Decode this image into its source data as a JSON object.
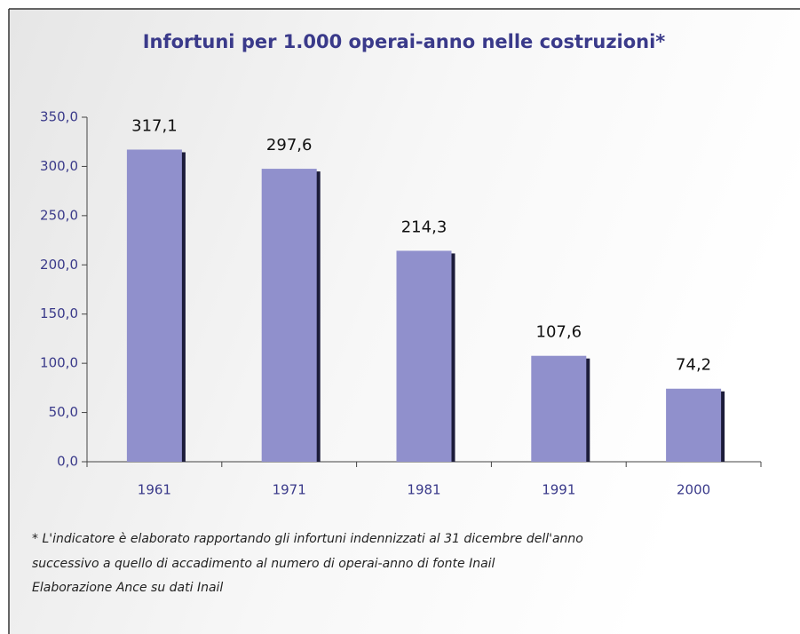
{
  "chart_data": {
    "type": "bar",
    "title": "Infortuni per 1.000 operai-anno nelle costruzioni*",
    "categories": [
      "1961",
      "1971",
      "1981",
      "1991",
      "2000"
    ],
    "values": [
      317.1,
      297.6,
      214.3,
      107.6,
      74.2
    ],
    "value_labels": [
      "317,1",
      "297,6",
      "214,3",
      "107,6",
      "74,2"
    ],
    "color": "#9090cc",
    "ylim": [
      0,
      350
    ],
    "yticks": [
      {
        "value": 0,
        "label": "0,0"
      },
      {
        "value": 50,
        "label": "50,0"
      },
      {
        "value": 100,
        "label": "100,0"
      },
      {
        "value": 150,
        "label": "150,0"
      },
      {
        "value": 200,
        "label": "200,0"
      },
      {
        "value": 250,
        "label": "250,0"
      },
      {
        "value": 300,
        "label": "300,0"
      },
      {
        "value": 350,
        "label": "350,0"
      }
    ],
    "notes": [
      "* L'indicatore è elaborato rapportando gli infortuni indennizzati al 31 dicembre dell'anno",
      "successivo a quello di accadimento al numero di operai-anno di fonte Inail",
      "Elaborazione Ance su dati Inail"
    ]
  }
}
